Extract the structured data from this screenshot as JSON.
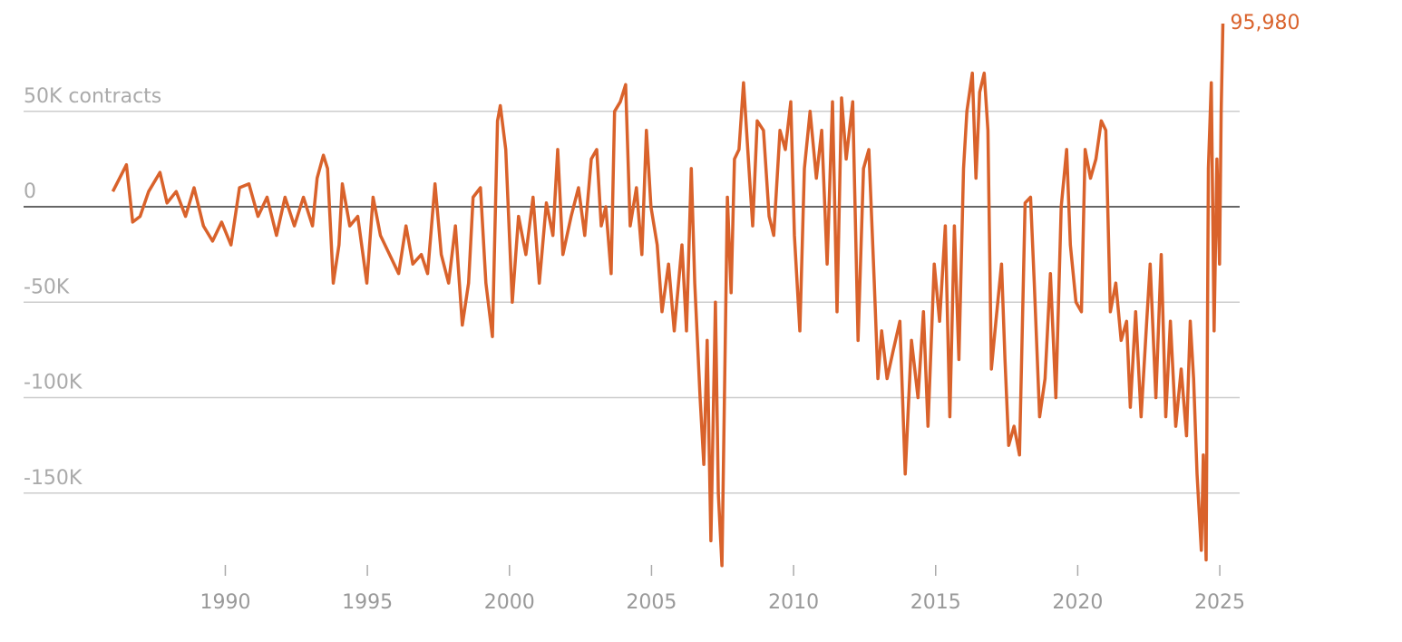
{
  "chart_data": {
    "type": "line",
    "color": "#d9622b",
    "grid": true,
    "xlim": [
      1982.9,
      2025.7
    ],
    "xticks": [
      1990,
      1995,
      2000,
      2005,
      2010,
      2015,
      2020,
      2025
    ],
    "ylim": [
      -190000,
      105000
    ],
    "yticks": [
      {
        "value": 50000,
        "label": "50K contracts"
      },
      0,
      {
        "value": -50000,
        "label": "-50K"
      },
      {
        "value": -100000,
        "label": "-100K"
      },
      {
        "value": -150000,
        "label": "-150K"
      }
    ],
    "annotation": {
      "x": 2025.11,
      "value": 95980,
      "label": "95,980"
    },
    "x": [
      1986.04,
      1986.52,
      1986.74,
      1987.0,
      1987.3,
      1987.7,
      1987.95,
      1988.27,
      1988.6,
      1988.9,
      1989.23,
      1989.55,
      1989.87,
      1990.2,
      1990.5,
      1990.83,
      1991.15,
      1991.47,
      1991.8,
      1992.1,
      1992.43,
      1992.75,
      1993.07,
      1993.23,
      1993.45,
      1993.6,
      1993.8,
      1994.0,
      1994.12,
      1994.38,
      1994.66,
      1994.98,
      1995.2,
      1995.46,
      1995.78,
      1996.1,
      1996.36,
      1996.6,
      1996.9,
      1997.12,
      1997.38,
      1997.6,
      1997.86,
      1998.1,
      1998.34,
      1998.56,
      1998.72,
      1998.98,
      1999.17,
      1999.4,
      1999.58,
      1999.68,
      1999.87,
      2000.1,
      2000.32,
      2000.58,
      2000.83,
      2001.05,
      2001.3,
      2001.53,
      2001.7,
      2001.88,
      2002.17,
      2002.43,
      2002.65,
      2002.88,
      2003.07,
      2003.23,
      2003.39,
      2003.58,
      2003.7,
      2003.9,
      2004.09,
      2004.25,
      2004.47,
      2004.66,
      2004.82,
      2004.98,
      2005.2,
      2005.37,
      2005.6,
      2005.8,
      2006.07,
      2006.23,
      2006.4,
      2006.52,
      2006.71,
      2006.84,
      2006.96,
      2007.09,
      2007.25,
      2007.35,
      2007.48,
      2007.67,
      2007.8,
      2007.92,
      2008.08,
      2008.24,
      2008.43,
      2008.56,
      2008.72,
      2008.94,
      2009.14,
      2009.3,
      2009.52,
      2009.71,
      2009.9,
      2010.03,
      2010.22,
      2010.38,
      2010.58,
      2010.8,
      2010.99,
      2011.18,
      2011.37,
      2011.53,
      2011.69,
      2011.85,
      2012.08,
      2012.27,
      2012.46,
      2012.65,
      2012.84,
      2012.97,
      2013.1,
      2013.29,
      2013.51,
      2013.74,
      2013.93,
      2014.15,
      2014.38,
      2014.57,
      2014.73,
      2014.95,
      2015.14,
      2015.34,
      2015.5,
      2015.66,
      2015.82,
      2015.98,
      2016.1,
      2016.29,
      2016.42,
      2016.55,
      2016.71,
      2016.84,
      2016.96,
      2017.12,
      2017.32,
      2017.44,
      2017.57,
      2017.76,
      2017.95,
      2018.15,
      2018.34,
      2018.47,
      2018.66,
      2018.85,
      2019.04,
      2019.23,
      2019.42,
      2019.61,
      2019.74,
      2019.94,
      2020.13,
      2020.26,
      2020.45,
      2020.64,
      2020.83,
      2020.99,
      2021.15,
      2021.34,
      2021.53,
      2021.72,
      2021.85,
      2022.04,
      2022.23,
      2022.43,
      2022.55,
      2022.75,
      2022.94,
      2023.1,
      2023.26,
      2023.45,
      2023.64,
      2023.83,
      2023.96,
      2024.08,
      2024.2,
      2024.35,
      2024.42,
      2024.52,
      2024.6,
      2024.7,
      2024.8,
      2024.9,
      2024.99,
      2025.05,
      2025.11
    ],
    "values": [
      8000,
      22000,
      -8000,
      -5000,
      8000,
      18000,
      2000,
      8000,
      -5000,
      10000,
      -10000,
      -18000,
      -8000,
      -20000,
      10000,
      12000,
      -5000,
      5000,
      -15000,
      5000,
      -10000,
      5000,
      -10000,
      15000,
      27000,
      20000,
      -40000,
      -20000,
      12000,
      -10000,
      -5000,
      -40000,
      5000,
      -15000,
      -25000,
      -35000,
      -10000,
      -30000,
      -25000,
      -35000,
      12000,
      -25000,
      -40000,
      -10000,
      -62000,
      -40000,
      5000,
      10000,
      -40000,
      -68000,
      45000,
      53000,
      30000,
      -50000,
      -5000,
      -25000,
      5000,
      -40000,
      2000,
      -15000,
      30000,
      -25000,
      -5000,
      10000,
      -15000,
      25000,
      30000,
      -10000,
      0,
      -35000,
      50000,
      55000,
      64000,
      -10000,
      10000,
      -25000,
      40000,
      0,
      -20000,
      -55000,
      -30000,
      -65000,
      -20000,
      -65000,
      20000,
      -40000,
      -100000,
      -135000,
      -70000,
      -175000,
      -50000,
      -150000,
      -188000,
      5000,
      -45000,
      25000,
      30000,
      65000,
      20000,
      -10000,
      45000,
      40000,
      -5000,
      -15000,
      40000,
      30000,
      55000,
      -15000,
      -65000,
      20000,
      50000,
      15000,
      40000,
      -30000,
      55000,
      -55000,
      57000,
      25000,
      55000,
      -70000,
      20000,
      30000,
      -40000,
      -90000,
      -65000,
      -90000,
      -75000,
      -60000,
      -140000,
      -70000,
      -100000,
      -55000,
      -115000,
      -30000,
      -60000,
      -10000,
      -110000,
      -10000,
      -80000,
      20000,
      50000,
      70000,
      15000,
      60000,
      70000,
      40000,
      -85000,
      -60000,
      -30000,
      -80000,
      -125000,
      -115000,
      -130000,
      2000,
      5000,
      -40000,
      -110000,
      -90000,
      -35000,
      -100000,
      0,
      30000,
      -20000,
      -50000,
      -55000,
      30000,
      15000,
      25000,
      45000,
      40000,
      -55000,
      -40000,
      -70000,
      -60000,
      -105000,
      -55000,
      -110000,
      -60000,
      -30000,
      -100000,
      -25000,
      -110000,
      -60000,
      -115000,
      -85000,
      -120000,
      -60000,
      -90000,
      -140000,
      -180000,
      -130000,
      -185000,
      20000,
      65000,
      -65000,
      25000,
      -30000,
      50000,
      95980
    ]
  }
}
